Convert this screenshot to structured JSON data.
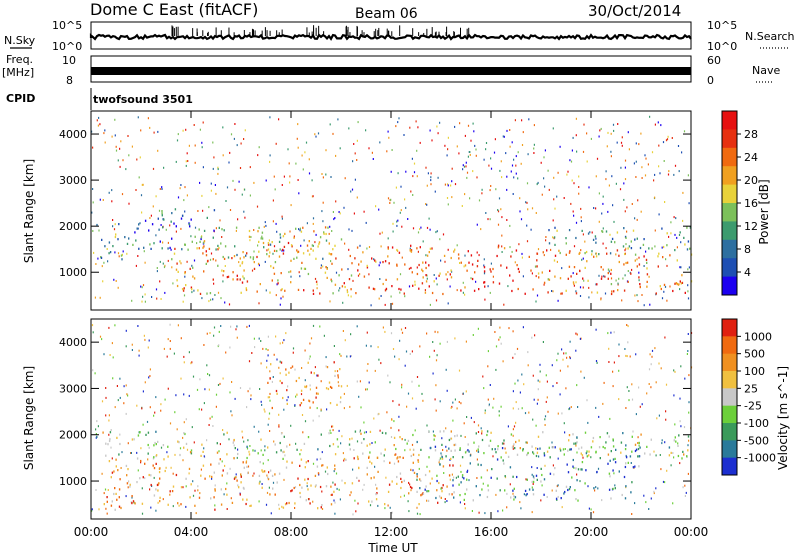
{
  "header": {
    "station": "Dome C East (fitACF)",
    "beam": "Beam 06",
    "date": "30/Oct/2014"
  },
  "strips": {
    "nsky_label": "N.Sky",
    "nsky_ticks": [
      "10^5",
      "10^0"
    ],
    "nsearch_label": "N.Search",
    "nsearch_ticks": [
      "10^5",
      "10^0"
    ],
    "freq_label": "Freq.",
    "freq_unit": "[MHz]",
    "freq_ticks": [
      "10",
      "8"
    ],
    "nave_label": "Nave",
    "nave_ticks": [
      "60",
      "0"
    ],
    "cpid_label": "CPID",
    "cpid_value": "twofsound 3501"
  },
  "xaxis": {
    "label": "Time UT",
    "ticks": [
      "00:00",
      "04:00",
      "08:00",
      "12:00",
      "16:00",
      "20:00",
      "00:00"
    ]
  },
  "chart_data": [
    {
      "type": "heatmap",
      "quantity": "power",
      "xlabel": "Time UT",
      "ylabel": "Slant Range [km]",
      "x_range_hours": [
        0,
        24
      ],
      "ylim": [
        180,
        4500
      ],
      "yticks": [
        1000,
        2000,
        3000,
        4000
      ],
      "colorbar": {
        "label": "Power [dB]",
        "ticks": [
          "4",
          "8",
          "12",
          "16",
          "20",
          "24",
          "28"
        ],
        "colors": [
          "#1c00f0",
          "#1e4fb3",
          "#2d6fa0",
          "#3c9b6e",
          "#7cc05a",
          "#e8d23a",
          "#f0a020",
          "#f06a10",
          "#e63010",
          "#e61010"
        ]
      },
      "bands": [
        {
          "t0": 0.2,
          "t1": 2.0,
          "r0": 1300,
          "r1": 2100,
          "level": 0.28
        },
        {
          "t0": 2.0,
          "t1": 5.0,
          "r0": 1500,
          "r1": 2400,
          "level": 0.22
        },
        {
          "t0": 3.2,
          "t1": 10.5,
          "r0": 550,
          "r1": 1700,
          "level": 0.68
        },
        {
          "t0": 4.0,
          "t1": 10.0,
          "r0": 1300,
          "r1": 2000,
          "level": 0.5
        },
        {
          "t0": 10.5,
          "t1": 17.5,
          "r0": 550,
          "r1": 1600,
          "level": 0.82
        },
        {
          "t0": 17.5,
          "t1": 24.0,
          "r0": 550,
          "r1": 1500,
          "level": 0.72
        },
        {
          "t0": 18.0,
          "t1": 24.0,
          "r0": 1400,
          "r1": 2000,
          "level": 0.35
        }
      ]
    },
    {
      "type": "heatmap",
      "quantity": "velocity",
      "xlabel": "Time UT",
      "ylabel": "Slant Range [km]",
      "x_range_hours": [
        0,
        24
      ],
      "ylim": [
        180,
        4500
      ],
      "yticks": [
        1000,
        2000,
        3000,
        4000
      ],
      "colorbar": {
        "label": "Velocity [m s^-1]",
        "ticks": [
          "1000",
          "500",
          "100",
          "25",
          "-25",
          "-100",
          "-500",
          "-1000"
        ],
        "colors": [
          "#1c2fd0",
          "#2a7a9a",
          "#3a9a5a",
          "#6ccf3a",
          "#c8c8c8",
          "#f0c040",
          "#f09020",
          "#f06a10",
          "#e02010"
        ]
      },
      "bands": [
        {
          "t0": 0.2,
          "t1": 24.0,
          "r0": 1500,
          "r1": 2100,
          "level": 0.45
        },
        {
          "t0": 0.5,
          "t1": 10.5,
          "r0": 400,
          "r1": 1500,
          "level": 0.72
        },
        {
          "t0": 10.5,
          "t1": 14.5,
          "r0": 500,
          "r1": 1600,
          "level": 0.72
        },
        {
          "t0": 13.0,
          "t1": 22.0,
          "r0": 600,
          "r1": 1800,
          "level": 0.25
        },
        {
          "t0": 7.0,
          "t1": 10.0,
          "r0": 2600,
          "r1": 3600,
          "level": 0.75
        }
      ]
    }
  ]
}
